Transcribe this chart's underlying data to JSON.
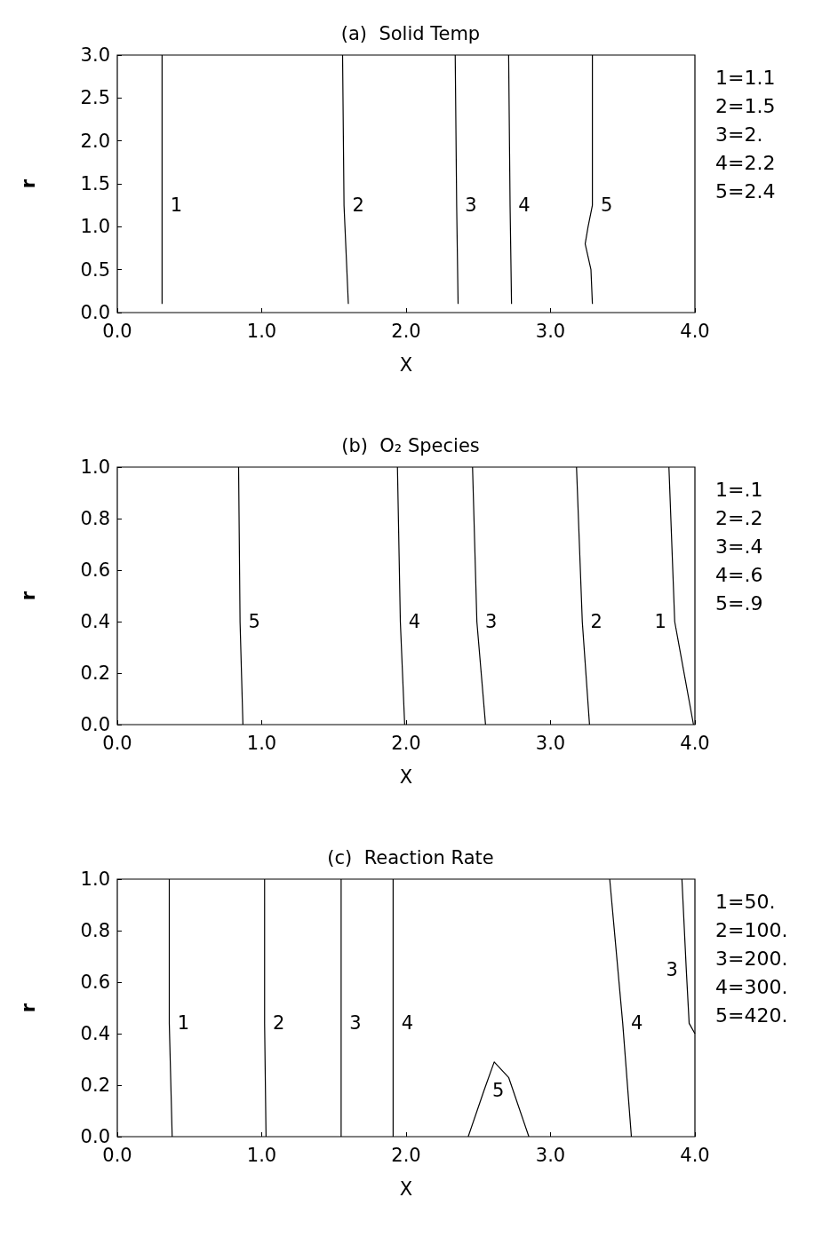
{
  "chart_data": [
    {
      "type": "line",
      "title": "(a)  Solid Temp",
      "xlabel": "X",
      "ylabel": "r",
      "xlim": [
        0,
        4
      ],
      "ylim": [
        0,
        3
      ],
      "marker": "none",
      "line_style": "solid",
      "xticks": [
        {
          "value": 0,
          "label": "0.0"
        },
        {
          "value": 1,
          "label": "1.0"
        },
        {
          "value": 2,
          "label": "2.0"
        },
        {
          "value": 3,
          "label": "3.0"
        },
        {
          "value": 4,
          "label": "4.0"
        }
      ],
      "yticks": [
        {
          "value": 0,
          "label": "0.0"
        },
        0.5,
        {
          "value": 1,
          "label": "1.0"
        },
        1.5,
        {
          "value": 2,
          "label": "2.0"
        },
        2.5,
        {
          "value": 3,
          "label": "3.0"
        }
      ],
      "series": [
        {
          "color": "#000000",
          "x": [
            0.31,
            0.31,
            0.31
          ],
          "values": [
            0.1,
            1.25,
            3.0
          ]
        },
        {
          "color": "#000000",
          "x": [
            1.6,
            1.57,
            1.56
          ],
          "values": [
            0.1,
            1.25,
            3.0
          ]
        },
        {
          "color": "#000000",
          "x": [
            2.36,
            2.35,
            2.34
          ],
          "values": [
            0.1,
            1.25,
            3.0
          ]
        },
        {
          "color": "#000000",
          "x": [
            2.73,
            2.72,
            2.71
          ],
          "values": [
            0.1,
            1.25,
            3.0
          ]
        },
        {
          "color": "#000000",
          "x": [
            3.29,
            3.28,
            3.24,
            3.26,
            3.29,
            3.29
          ],
          "values": [
            0.1,
            0.5,
            0.8,
            1.0,
            1.25,
            3.0
          ]
        }
      ],
      "annotations": [
        {
          "text": "1",
          "x": 0.31,
          "y": 1.25
        },
        {
          "text": "2",
          "x": 1.57,
          "y": 1.25
        },
        {
          "text": "3",
          "x": 2.35,
          "y": 1.25
        },
        {
          "text": "4",
          "x": 2.72,
          "y": 1.25
        },
        {
          "text": "5",
          "x": 3.29,
          "y": 1.25
        },
        "1=1.1",
        "2=1.5",
        "3=2.",
        "4=2.2",
        "5=2.4"
      ]
    },
    {
      "type": "line",
      "title": "(b)  O₂ Species",
      "xlabel": "X",
      "ylabel": "r",
      "xlim": [
        0,
        4
      ],
      "ylim": [
        0,
        1
      ],
      "marker": "none",
      "line_style": "solid",
      "xticks": [
        {
          "value": 0,
          "label": "0.0"
        },
        {
          "value": 1,
          "label": "1.0"
        },
        {
          "value": 2,
          "label": "2.0"
        },
        {
          "value": 3,
          "label": "3.0"
        },
        {
          "value": 4,
          "label": "4.0"
        }
      ],
      "yticks": [
        {
          "value": 0,
          "label": "0.0"
        },
        0.2,
        0.4,
        0.6,
        0.8,
        {
          "value": 1,
          "label": "1.0"
        }
      ],
      "series": [
        {
          "color": "#000000",
          "x": [
            0.87,
            0.85,
            0.84
          ],
          "values": [
            0,
            0.4,
            1
          ]
        },
        {
          "color": "#000000",
          "x": [
            1.99,
            1.96,
            1.94
          ],
          "values": [
            0,
            0.4,
            1
          ]
        },
        {
          "color": "#000000",
          "x": [
            2.55,
            2.49,
            2.46
          ],
          "values": [
            0,
            0.4,
            1
          ]
        },
        {
          "color": "#000000",
          "x": [
            3.27,
            3.22,
            3.18
          ],
          "values": [
            0,
            0.4,
            1
          ]
        },
        {
          "color": "#000000",
          "x": [
            3.99,
            3.86,
            3.82
          ],
          "values": [
            0,
            0.4,
            1
          ]
        }
      ],
      "annotations": [
        {
          "text": "5",
          "x": 0.85,
          "y": 0.4
        },
        {
          "text": "4",
          "x": 1.96,
          "y": 0.4
        },
        {
          "text": "3",
          "x": 2.49,
          "y": 0.4
        },
        {
          "text": "2",
          "x": 3.22,
          "y": 0.4
        },
        {
          "text": "1",
          "x": 3.86,
          "y": 0.4
        },
        "1=.1",
        "2=.2",
        "3=.4",
        "4=.6",
        "5=.9"
      ]
    },
    {
      "type": "line",
      "title": "(c)  Reaction Rate",
      "xlabel": "X",
      "ylabel": "r",
      "xlim": [
        0,
        4
      ],
      "ylim": [
        0,
        1
      ],
      "marker": "none",
      "line_style": "solid",
      "xticks": [
        {
          "value": 0,
          "label": "0.0"
        },
        {
          "value": 1,
          "label": "1.0"
        },
        {
          "value": 2,
          "label": "2.0"
        },
        {
          "value": 3,
          "label": "3.0"
        },
        {
          "value": 4,
          "label": "4.0"
        }
      ],
      "yticks": [
        {
          "value": 0,
          "label": "0.0"
        },
        0.2,
        0.4,
        0.6,
        0.8,
        {
          "value": 1,
          "label": "1.0"
        }
      ],
      "series": [
        {
          "color": "#000000",
          "x": [
            0.38,
            0.36,
            0.36
          ],
          "values": [
            0,
            0.44,
            1
          ]
        },
        {
          "color": "#000000",
          "x": [
            1.03,
            1.02,
            1.02
          ],
          "values": [
            0,
            0.44,
            1
          ]
        },
        {
          "color": "#000000",
          "x": [
            1.55,
            1.55,
            1.55
          ],
          "values": [
            0,
            0.44,
            1
          ]
        },
        {
          "color": "#000000",
          "x": [
            1.91,
            1.91,
            1.91
          ],
          "values": [
            0,
            0.44,
            1
          ]
        },
        {
          "color": "#000000",
          "x": [
            2.43,
            2.54,
            2.61,
            2.71,
            2.85
          ],
          "values": [
            0,
            0.18,
            0.29,
            0.23,
            0
          ]
        },
        {
          "color": "#000000",
          "x": [
            3.56,
            3.5,
            3.41
          ],
          "values": [
            0,
            0.44,
            1
          ]
        },
        {
          "color": "#000000",
          "x": [
            4.0,
            3.96,
            3.94,
            3.91
          ],
          "values": [
            0.4,
            0.44,
            0.65,
            1
          ]
        }
      ],
      "annotations": [
        {
          "text": "1",
          "x": 0.36,
          "y": 0.44
        },
        {
          "text": "2",
          "x": 1.02,
          "y": 0.44
        },
        {
          "text": "3",
          "x": 1.55,
          "y": 0.44
        },
        {
          "text": "4",
          "x": 1.91,
          "y": 0.44
        },
        {
          "text": "5",
          "x": 2.54,
          "y": 0.18
        },
        {
          "text": "4",
          "x": 3.5,
          "y": 0.44
        },
        {
          "text": "3",
          "x": 3.94,
          "y": 0.65
        },
        "1=50.",
        "2=100.",
        "3=200.",
        "4=300.",
        "5=420."
      ]
    }
  ]
}
